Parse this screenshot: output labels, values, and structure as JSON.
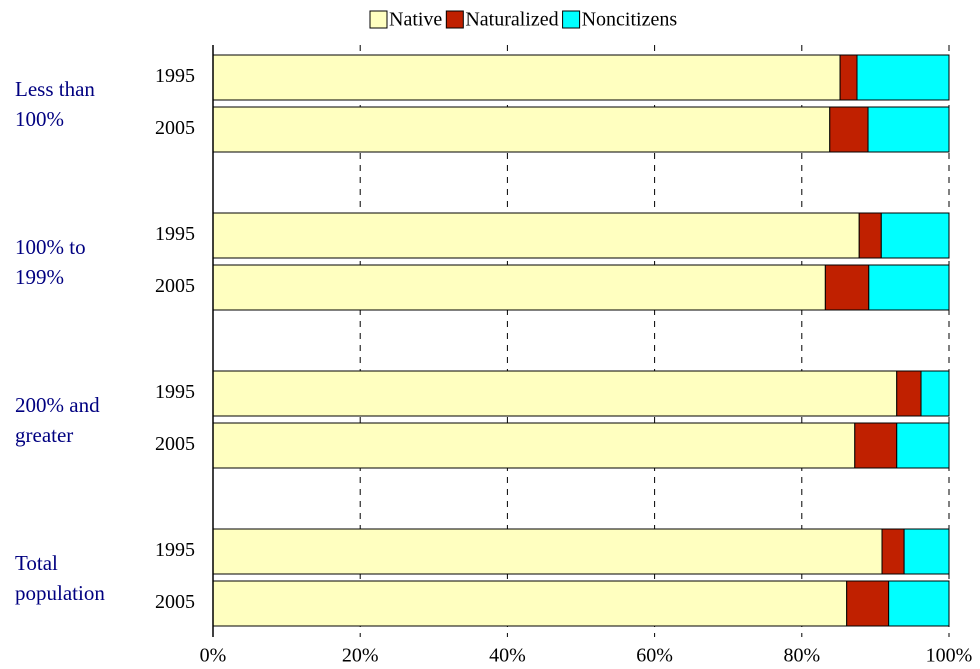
{
  "chart_data": {
    "type": "stacked-barh",
    "groups": [
      "Less than 100%",
      "100% to 199%",
      "200% and greater",
      "Total population"
    ],
    "categories": [
      "1995",
      "2005",
      "1995",
      "2005",
      "1995",
      "2005",
      "1995",
      "2005"
    ],
    "series": [
      {
        "name": "Native",
        "color": "#ffffc0",
        "values": [
          85.2,
          83.8,
          87.8,
          83.2,
          92.9,
          87.2,
          90.9,
          86.1
        ]
      },
      {
        "name": "Naturalized",
        "color": "#c02000",
        "values": [
          2.3,
          5.2,
          3.0,
          5.9,
          3.3,
          5.7,
          3.0,
          5.7
        ]
      },
      {
        "name": "Noncitizens",
        "color": "#00ffff",
        "values": [
          12.5,
          11.0,
          9.2,
          10.9,
          3.8,
          7.1,
          6.1,
          8.2
        ]
      }
    ],
    "xlim": [
      0,
      100
    ],
    "xticks": [
      {
        "value": 0,
        "label": "0%"
      },
      {
        "value": 20,
        "label": "20%"
      },
      {
        "value": 40,
        "label": "40%"
      },
      {
        "value": 60,
        "label": "60%"
      },
      {
        "value": 80,
        "label": "80%"
      },
      {
        "value": 100,
        "label": "100%"
      }
    ],
    "grid": true,
    "legend": "top"
  }
}
